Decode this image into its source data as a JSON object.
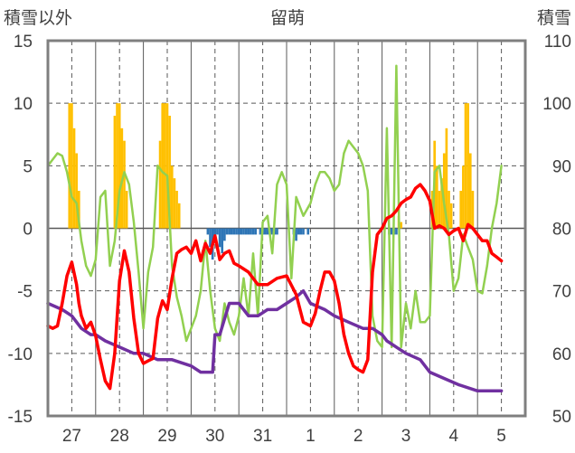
{
  "chart_data": {
    "type": "line",
    "title": "留萌",
    "left_axis_label": "積雪以外",
    "right_axis_label": "積雪",
    "left_ylim": [
      -15,
      15
    ],
    "left_ticks": [
      "15",
      "10",
      "5",
      "0",
      "-5",
      "-10",
      "-15"
    ],
    "right_ylim": [
      50,
      110
    ],
    "right_ticks": [
      "110",
      "100",
      "90",
      "80",
      "70",
      "60",
      "50"
    ],
    "x_range": [
      0,
      10
    ],
    "x_day_labels": [
      "27",
      "28",
      "29",
      "30",
      "31",
      "1",
      "2",
      "3",
      "4",
      "5"
    ],
    "grid": true,
    "colors": {
      "temperature": "#ff0000",
      "humidity": "#92d050",
      "snow_depth": "#7030a0",
      "precip_pos": "#ffc000",
      "precip_neg": "#2e75b6",
      "grid": "#595959",
      "frame": "#7f7f7f"
    },
    "series": [
      {
        "key": "temperature",
        "axis": "left",
        "x": [
          0.0,
          0.1,
          0.2,
          0.3,
          0.4,
          0.5,
          0.6,
          0.65,
          0.7,
          0.8,
          0.9,
          1.0,
          1.1,
          1.2,
          1.3,
          1.4,
          1.5,
          1.6,
          1.7,
          1.8,
          1.9,
          2.0,
          2.1,
          2.2,
          2.3,
          2.4,
          2.5,
          2.6,
          2.7,
          2.8,
          2.9,
          3.0,
          3.1,
          3.2,
          3.3,
          3.4,
          3.5,
          3.6,
          3.7,
          3.8,
          3.9,
          4.0,
          4.2,
          4.4,
          4.6,
          4.8,
          5.0,
          5.2,
          5.35,
          5.5,
          5.6,
          5.7,
          5.8,
          5.9,
          6.0,
          6.1,
          6.2,
          6.3,
          6.4,
          6.5,
          6.6,
          6.7,
          6.8,
          6.9,
          7.0,
          7.1,
          7.2,
          7.3,
          7.4,
          7.5,
          7.6,
          7.7,
          7.8,
          7.9,
          8.0,
          8.1,
          8.2,
          8.3,
          8.4,
          8.5,
          8.6,
          8.7,
          8.8,
          8.9,
          9.0,
          9.1,
          9.2,
          9.3,
          9.4,
          9.5
        ],
        "values": [
          -7.8,
          -8.0,
          -7.8,
          -6.0,
          -3.8,
          -2.7,
          -4.5,
          -6.0,
          -7.0,
          -8.0,
          -7.5,
          -8.6,
          -10.5,
          -12.2,
          -12.8,
          -10.0,
          -4.2,
          -1.8,
          -3.5,
          -7.2,
          -10.0,
          -10.8,
          -10.6,
          -10.4,
          -7.2,
          -5.8,
          -6.5,
          -4.0,
          -2.0,
          -1.7,
          -1.5,
          -2.0,
          -1.0,
          -2.6,
          -1.2,
          -2.0,
          -0.6,
          -2.5,
          -2.0,
          -1.8,
          -2.8,
          -3.0,
          -3.5,
          -4.5,
          -4.5,
          -4.0,
          -3.8,
          -5.3,
          -7.5,
          -7.8,
          -6.8,
          -5.0,
          -3.5,
          -3.5,
          -4.2,
          -6.0,
          -8.5,
          -10.0,
          -11.0,
          -11.3,
          -11.5,
          -10.5,
          -3.5,
          -0.5,
          0.0,
          0.8,
          1.0,
          1.4,
          2.0,
          2.3,
          2.5,
          3.2,
          3.5,
          3.0,
          2.2,
          0.0,
          0.2,
          0.0,
          -0.5,
          -0.2,
          0.0,
          -1.0,
          0.3,
          0.0,
          -0.5,
          -1.0,
          -1.0,
          -2.0,
          -2.3,
          -2.6
        ]
      },
      {
        "key": "humidity",
        "axis": "left",
        "x": [
          0.0,
          0.1,
          0.2,
          0.3,
          0.4,
          0.5,
          0.6,
          0.7,
          0.8,
          0.9,
          1.0,
          1.1,
          1.2,
          1.3,
          1.4,
          1.5,
          1.6,
          1.7,
          1.8,
          1.9,
          2.0,
          2.1,
          2.2,
          2.3,
          2.4,
          2.5,
          2.6,
          2.7,
          2.8,
          2.9,
          3.0,
          3.1,
          3.2,
          3.3,
          3.4,
          3.5,
          3.6,
          3.7,
          3.8,
          3.9,
          4.0,
          4.1,
          4.2,
          4.3,
          4.4,
          4.5,
          4.6,
          4.7,
          4.8,
          4.9,
          5.0,
          5.1,
          5.2,
          5.35,
          5.5,
          5.6,
          5.7,
          5.8,
          5.9,
          6.0,
          6.1,
          6.2,
          6.3,
          6.4,
          6.5,
          6.6,
          6.7,
          6.8,
          6.9,
          7.0,
          7.1,
          7.2,
          7.3,
          7.4,
          7.5,
          7.6,
          7.7,
          7.8,
          7.9,
          8.0,
          8.1,
          8.2,
          8.3,
          8.4,
          8.5,
          8.6,
          8.7,
          8.8,
          8.9,
          9.0,
          9.1,
          9.2,
          9.3,
          9.4,
          9.5
        ],
        "values": [
          5.0,
          5.5,
          6.0,
          5.8,
          4.5,
          2.5,
          2.0,
          -1.0,
          -3.0,
          -3.8,
          -2.5,
          2.5,
          3.0,
          -3.0,
          -1.0,
          3.0,
          4.5,
          3.5,
          0.5,
          -3.5,
          -8.0,
          -3.5,
          -1.5,
          5.0,
          4.5,
          4.2,
          -3.0,
          -5.5,
          -7.0,
          -9.0,
          -8.0,
          -7.0,
          -5.0,
          -1.0,
          -5.0,
          -8.0,
          -9.0,
          -6.0,
          -7.5,
          -8.5,
          -7.0,
          -4.0,
          -7.0,
          -2.0,
          -7.0,
          0.5,
          1.0,
          -2.0,
          3.5,
          4.5,
          3.5,
          -4.0,
          2.5,
          1.0,
          2.0,
          3.5,
          4.5,
          4.5,
          4.0,
          3.0,
          3.5,
          6.0,
          7.0,
          6.5,
          6.0,
          5.0,
          3.0,
          -7.0,
          -9.0,
          -9.5,
          8.0,
          -9.5,
          13.0,
          -9.5,
          -6.0,
          -8.0,
          -5.0,
          -7.5,
          -7.5,
          -7.0,
          4.5,
          5.0,
          2.0,
          -0.5,
          -5.0,
          -4.0,
          -0.5,
          -1.5,
          -2.5,
          -5.0,
          -5.2,
          -3.0,
          0.0,
          2.0,
          5.0
        ]
      },
      {
        "key": "snow_depth",
        "axis": "right",
        "x": [
          0.0,
          0.3,
          0.5,
          0.7,
          0.9,
          1.0,
          1.2,
          1.5,
          1.8,
          2.0,
          2.3,
          2.6,
          3.0,
          3.2,
          3.4,
          3.45,
          3.5,
          3.6,
          3.8,
          4.0,
          4.2,
          4.4,
          4.6,
          4.8,
          5.0,
          5.2,
          5.35,
          5.5,
          5.8,
          6.0,
          6.3,
          6.6,
          6.8,
          7.0,
          7.1,
          7.3,
          7.5,
          7.8,
          8.0,
          8.3,
          8.6,
          9.0,
          9.3,
          9.5
        ],
        "values": [
          68,
          67,
          66,
          64,
          63,
          63,
          62,
          61,
          60,
          60,
          59,
          59,
          58,
          57,
          57,
          57,
          63,
          63,
          68,
          68,
          66,
          66,
          67,
          67,
          68,
          69,
          70,
          68,
          67,
          66,
          65,
          64,
          64,
          63,
          62,
          61,
          60,
          59,
          57,
          56,
          55,
          54,
          54,
          54
        ]
      }
    ],
    "precip_bars": {
      "x": [
        0.45,
        0.5,
        0.55,
        0.6,
        0.65,
        1.4,
        1.45,
        1.5,
        1.55,
        1.6,
        1.65,
        2.35,
        2.4,
        2.45,
        2.5,
        2.55,
        2.6,
        2.65,
        2.7,
        2.75,
        3.35,
        3.4,
        3.45,
        3.5,
        3.55,
        3.6,
        3.65,
        3.7,
        3.75,
        3.8,
        3.85,
        3.9,
        3.95,
        4.0,
        4.05,
        4.1,
        4.15,
        4.2,
        4.25,
        4.3,
        4.35,
        4.45,
        4.5,
        4.55,
        4.6,
        4.65,
        4.7,
        4.75,
        4.8,
        5.15,
        5.2,
        5.25,
        5.3,
        5.35,
        5.45,
        5.6,
        5.65,
        5.7,
        5.75,
        5.8,
        5.85,
        5.9,
        6.2,
        6.25,
        6.3,
        6.35,
        6.4,
        6.45,
        6.5,
        6.55,
        6.6,
        6.65,
        6.7,
        6.75,
        6.8,
        6.85,
        6.9,
        6.95,
        7.0,
        7.05,
        7.1,
        7.15,
        7.2,
        7.25,
        7.3,
        7.35,
        7.4,
        7.45,
        7.5,
        7.55,
        7.6,
        7.65,
        7.7,
        7.75,
        7.8,
        7.85,
        7.9,
        7.95,
        8.0,
        8.05,
        8.1,
        8.15,
        8.2,
        8.25,
        8.3,
        8.35,
        8.4,
        8.45,
        8.5,
        8.55,
        8.6,
        8.65,
        8.7,
        8.75,
        8.8,
        8.85,
        8.9,
        8.95,
        9.0,
        9.05,
        9.1
      ],
      "values": [
        10.0,
        10.0,
        8.0,
        6.0,
        3.0,
        9.0,
        10.0,
        10.0,
        8.0,
        7.0,
        3.0,
        7.0,
        10.0,
        10.0,
        10.0,
        9.0,
        5.0,
        4.0,
        3.0,
        2.0,
        -0.5,
        -1.5,
        -2.5,
        -1.0,
        -0.5,
        -1.5,
        -2.0,
        -1.0,
        -0.5,
        -0.5,
        -0.5,
        -0.5,
        -0.5,
        -0.5,
        -0.5,
        -0.5,
        -0.5,
        -0.5,
        -0.5,
        -0.5,
        -0.5,
        -0.5,
        -0.5,
        -0.5,
        -0.5,
        -0.5,
        -0.5,
        -0.5,
        -0.5,
        -0.5,
        -1.0,
        -0.5,
        -0.5,
        -0.5,
        -0.5,
        0.0,
        0.0,
        0.0,
        0.0,
        0.0,
        0.0,
        0.0,
        0.0,
        0.0,
        0.0,
        0.0,
        0.0,
        0.0,
        0.0,
        0.0,
        0.0,
        0.0,
        0.0,
        0.0,
        0.0,
        0.0,
        0.0,
        0.0,
        0.0,
        0.0,
        0.0,
        -0.5,
        -0.5,
        -0.5,
        -0.5,
        1.0,
        0.5,
        0.0,
        0.0,
        0.0,
        0.0,
        0.0,
        0.0,
        0.0,
        0.0,
        0.0,
        0.0,
        0.0,
        0.0,
        3.0,
        7.0,
        5.0,
        3.0,
        4.0,
        6.0,
        8.0,
        3.0,
        2.0,
        0.0,
        0.0,
        0.0,
        3.0,
        5.0,
        10.0,
        10.0,
        6.0,
        3.0,
        0.0,
        0.0,
        0.0,
        0.0
      ]
    }
  }
}
